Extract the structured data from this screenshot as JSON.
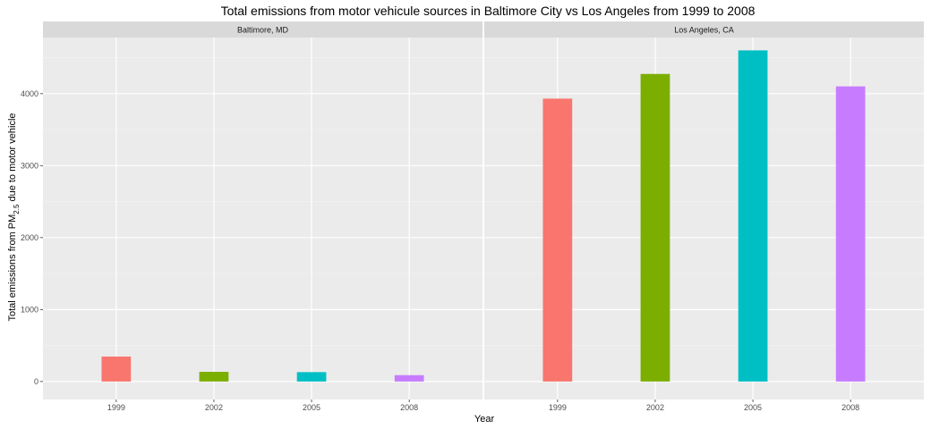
{
  "chart_data": {
    "type": "bar",
    "title": "Total emissions from motor vehicule sources in Baltimore City vs Los Angeles from 1999 to 2008",
    "xlabel": "Year",
    "ylabel": {
      "before": "Total emissions from PM",
      "subscript": "2.5",
      "after": " due to motor vehicle"
    },
    "categories": [
      "1999",
      "2002",
      "2005",
      "2008"
    ],
    "ylim": [
      -250,
      4780
    ],
    "y_ticks": [
      0,
      1000,
      2000,
      3000,
      4000
    ],
    "grid": true,
    "legend": "none",
    "colors": [
      "#F8766D",
      "#7CAE00",
      "#00BFC4",
      "#C77CFF"
    ],
    "panels": [
      {
        "name": "Baltimore, MD",
        "values": [
          346.8,
          134.3,
          130.4,
          88.3
        ]
      },
      {
        "name": "Los Angeles, CA",
        "values": [
          3931.1,
          4274.0,
          4601.4,
          4101.3
        ]
      }
    ]
  }
}
